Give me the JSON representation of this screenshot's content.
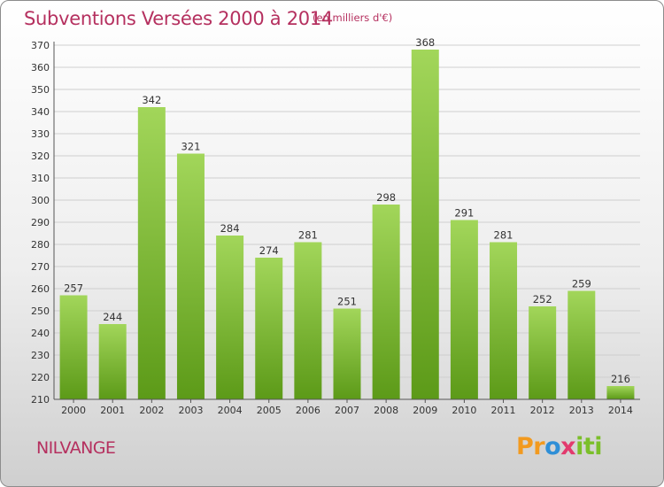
{
  "header": {
    "title": "Subventions Versées 2000 à 2014",
    "unit": "(en milliers d'€)"
  },
  "footer": {
    "place": "NILVANGE",
    "logo_parts": [
      "Pr",
      "o",
      "x",
      "iti"
    ]
  },
  "colors": {
    "accent": "#b5305f",
    "bar_top": "#a2d65a",
    "bar_bottom": "#5c9a18",
    "grid": "#cfcfcf"
  },
  "chart_data": {
    "type": "bar",
    "title": "Subventions Versées 2000 à 2014",
    "subtitle": "(en milliers d'€)",
    "categories": [
      "2000",
      "2001",
      "2002",
      "2003",
      "2004",
      "2005",
      "2006",
      "2007",
      "2008",
      "2009",
      "2010",
      "2011",
      "2012",
      "2013",
      "2014"
    ],
    "values": [
      257,
      244,
      342,
      321,
      284,
      274,
      281,
      251,
      298,
      368,
      291,
      281,
      252,
      259,
      216
    ],
    "ylim": [
      210,
      370
    ],
    "yticks": [
      210,
      220,
      230,
      240,
      250,
      260,
      270,
      280,
      290,
      300,
      310,
      320,
      330,
      340,
      350,
      360,
      370
    ],
    "grid": true,
    "data_labels": true
  }
}
